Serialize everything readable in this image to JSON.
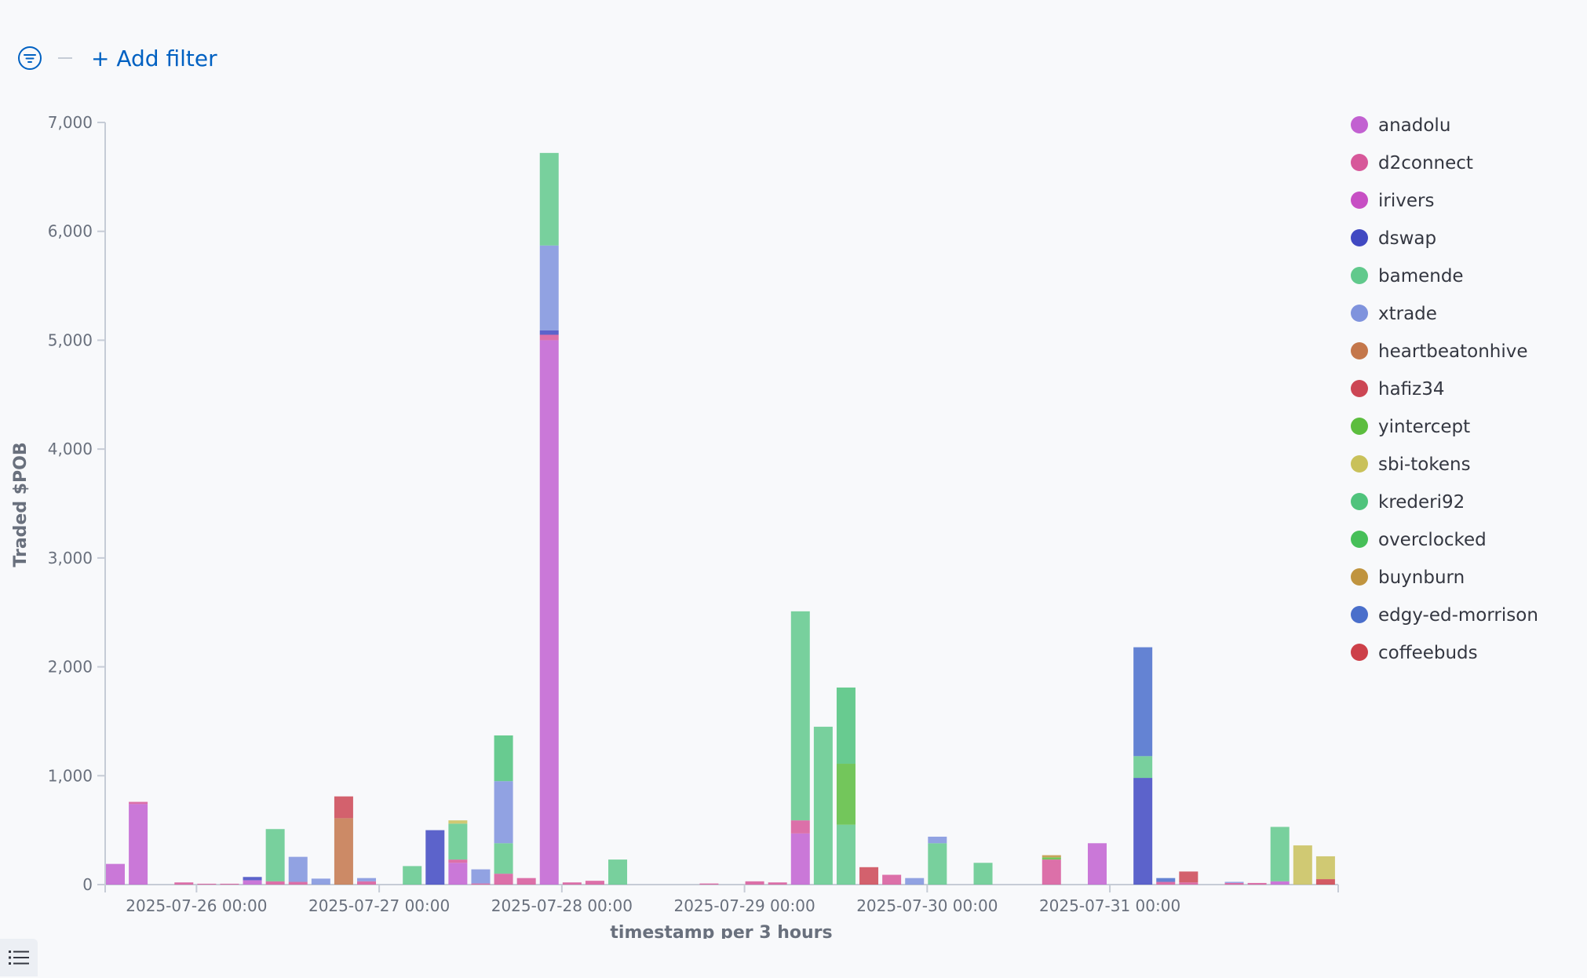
{
  "toolbar": {
    "add_filter_label": "+ Add filter",
    "filter_icon": "filter-icon",
    "legend_toggle_icon": "list-icon"
  },
  "chart_data": {
    "type": "bar",
    "stacked": true,
    "xlabel": "timestamp per 3 hours",
    "ylabel": "Traded $POB",
    "ylim": [
      0,
      7000
    ],
    "yticks": [
      0,
      1000,
      2000,
      3000,
      4000,
      5000,
      6000,
      7000
    ],
    "ytick_labels": [
      "0",
      "1,000",
      "2,000",
      "3,000",
      "4,000",
      "5,000",
      "6,000",
      "7,000"
    ],
    "xlim": [
      "2025-07-25 12:00",
      "2025-08-01 06:00"
    ],
    "xticks": [
      "2025-07-26 00:00",
      "2025-07-27 00:00",
      "2025-07-28 00:00",
      "2025-07-29 00:00",
      "2025-07-30 00:00",
      "2025-07-31 00:00"
    ],
    "grid": false,
    "legend_position": "right",
    "series": [
      {
        "name": "anadolu",
        "color": "#c261d1"
      },
      {
        "name": "d2connect",
        "color": "#d7589a"
      },
      {
        "name": "irivers",
        "color": "#c74fc4"
      },
      {
        "name": "dswap",
        "color": "#4149c2"
      },
      {
        "name": "bamende",
        "color": "#61c98c"
      },
      {
        "name": "xtrade",
        "color": "#7f93dd"
      },
      {
        "name": "heartbeatonhive",
        "color": "#c4774b"
      },
      {
        "name": "hafiz34",
        "color": "#cc4654"
      },
      {
        "name": "yintercept",
        "color": "#5cbd3e"
      },
      {
        "name": "sbi-tokens",
        "color": "#c9c15a"
      },
      {
        "name": "krederi92",
        "color": "#4fc37c"
      },
      {
        "name": "overclocked",
        "color": "#46bf58"
      },
      {
        "name": "buynburn",
        "color": "#c0943f"
      },
      {
        "name": "edgy-ed-morrison",
        "color": "#4a6fcb"
      },
      {
        "name": "coffeebuds",
        "color": "#cd4049"
      }
    ],
    "bars": [
      {
        "t": "2025-07-25 12:00",
        "stack": [
          {
            "s": "anadolu",
            "v": 190
          }
        ]
      },
      {
        "t": "2025-07-25 15:00",
        "stack": [
          {
            "s": "anadolu",
            "v": 740
          },
          {
            "s": "d2connect",
            "v": 20
          }
        ]
      },
      {
        "t": "2025-07-25 21:00",
        "stack": [
          {
            "s": "d2connect",
            "v": 20
          }
        ]
      },
      {
        "t": "2025-07-26 00:00",
        "stack": [
          {
            "s": "d2connect",
            "v": 8
          }
        ]
      },
      {
        "t": "2025-07-26 03:00",
        "stack": [
          {
            "s": "d2connect",
            "v": 8
          }
        ]
      },
      {
        "t": "2025-07-26 06:00",
        "stack": [
          {
            "s": "anadolu",
            "v": 40
          },
          {
            "s": "dswap",
            "v": 30
          }
        ]
      },
      {
        "t": "2025-07-26 09:00",
        "stack": [
          {
            "s": "d2connect",
            "v": 30
          },
          {
            "s": "bamende",
            "v": 480
          }
        ]
      },
      {
        "t": "2025-07-26 12:00",
        "stack": [
          {
            "s": "d2connect",
            "v": 25
          },
          {
            "s": "xtrade",
            "v": 230
          }
        ]
      },
      {
        "t": "2025-07-26 15:00",
        "stack": [
          {
            "s": "xtrade",
            "v": 55
          }
        ]
      },
      {
        "t": "2025-07-26 18:00",
        "stack": [
          {
            "s": "heartbeatonhive",
            "v": 610
          },
          {
            "s": "hafiz34",
            "v": 200
          }
        ]
      },
      {
        "t": "2025-07-26 21:00",
        "stack": [
          {
            "s": "d2connect",
            "v": 30
          },
          {
            "s": "xtrade",
            "v": 30
          }
        ]
      },
      {
        "t": "2025-07-27 03:00",
        "stack": [
          {
            "s": "bamende",
            "v": 170
          }
        ]
      },
      {
        "t": "2025-07-27 06:00",
        "stack": [
          {
            "s": "dswap",
            "v": 500
          }
        ]
      },
      {
        "t": "2025-07-27 09:00",
        "stack": [
          {
            "s": "anadolu",
            "v": 200
          },
          {
            "s": "d2connect",
            "v": 30
          },
          {
            "s": "bamende",
            "v": 330
          },
          {
            "s": "sbi-tokens",
            "v": 30
          }
        ]
      },
      {
        "t": "2025-07-27 12:00",
        "stack": [
          {
            "s": "d2connect",
            "v": 10
          },
          {
            "s": "xtrade",
            "v": 130
          }
        ]
      },
      {
        "t": "2025-07-27 15:00",
        "stack": [
          {
            "s": "d2connect",
            "v": 100
          },
          {
            "s": "bamende",
            "v": 280
          },
          {
            "s": "xtrade",
            "v": 570
          },
          {
            "s": "krederi92",
            "v": 420
          }
        ]
      },
      {
        "t": "2025-07-27 18:00",
        "stack": [
          {
            "s": "d2connect",
            "v": 60
          }
        ]
      },
      {
        "t": "2025-07-27 21:00",
        "stack": [
          {
            "s": "anadolu",
            "v": 5000
          },
          {
            "s": "d2connect",
            "v": 50
          },
          {
            "s": "dswap",
            "v": 40
          },
          {
            "s": "xtrade",
            "v": 780
          },
          {
            "s": "bamende",
            "v": 850
          }
        ]
      },
      {
        "t": "2025-07-28 00:00",
        "stack": [
          {
            "s": "d2connect",
            "v": 20
          }
        ]
      },
      {
        "t": "2025-07-28 03:00",
        "stack": [
          {
            "s": "d2connect",
            "v": 35
          }
        ]
      },
      {
        "t": "2025-07-28 06:00",
        "stack": [
          {
            "s": "bamende",
            "v": 230
          }
        ]
      },
      {
        "t": "2025-07-28 18:00",
        "stack": [
          {
            "s": "d2connect",
            "v": 10
          }
        ]
      },
      {
        "t": "2025-07-29 00:00",
        "stack": [
          {
            "s": "d2connect",
            "v": 30
          }
        ]
      },
      {
        "t": "2025-07-29 03:00",
        "stack": [
          {
            "s": "d2connect",
            "v": 20
          }
        ]
      },
      {
        "t": "2025-07-29 06:00",
        "stack": [
          {
            "s": "anadolu",
            "v": 470
          },
          {
            "s": "d2connect",
            "v": 120
          },
          {
            "s": "bamende",
            "v": 1920
          }
        ]
      },
      {
        "t": "2025-07-29 09:00",
        "stack": [
          {
            "s": "bamende",
            "v": 1450
          }
        ]
      },
      {
        "t": "2025-07-29 12:00",
        "stack": [
          {
            "s": "bamende",
            "v": 550
          },
          {
            "s": "yintercept",
            "v": 560
          },
          {
            "s": "krederi92",
            "v": 700
          }
        ]
      },
      {
        "t": "2025-07-29 15:00",
        "stack": [
          {
            "s": "hafiz34",
            "v": 160
          }
        ]
      },
      {
        "t": "2025-07-29 18:00",
        "stack": [
          {
            "s": "d2connect",
            "v": 90
          }
        ]
      },
      {
        "t": "2025-07-29 21:00",
        "stack": [
          {
            "s": "xtrade",
            "v": 60
          }
        ]
      },
      {
        "t": "2025-07-30 00:00",
        "stack": [
          {
            "s": "bamende",
            "v": 380
          },
          {
            "s": "xtrade",
            "v": 60
          }
        ]
      },
      {
        "t": "2025-07-30 06:00",
        "stack": [
          {
            "s": "bamende",
            "v": 200
          }
        ]
      },
      {
        "t": "2025-07-30 15:00",
        "stack": [
          {
            "s": "d2connect",
            "v": 230
          },
          {
            "s": "yintercept",
            "v": 20
          },
          {
            "s": "buynburn",
            "v": 20
          }
        ]
      },
      {
        "t": "2025-07-30 21:00",
        "stack": [
          {
            "s": "anadolu",
            "v": 380
          }
        ]
      },
      {
        "t": "2025-07-31 03:00",
        "stack": [
          {
            "s": "dswap",
            "v": 980
          },
          {
            "s": "bamende",
            "v": 200
          },
          {
            "s": "edgy-ed-morrison",
            "v": 1000
          }
        ]
      },
      {
        "t": "2025-07-31 06:00",
        "stack": [
          {
            "s": "d2connect",
            "v": 25
          },
          {
            "s": "edgy-ed-morrison",
            "v": 35
          }
        ]
      },
      {
        "t": "2025-07-31 09:00",
        "stack": [
          {
            "s": "d2connect",
            "v": 20
          },
          {
            "s": "hafiz34",
            "v": 100
          }
        ]
      },
      {
        "t": "2025-07-31 15:00",
        "stack": [
          {
            "s": "d2connect",
            "v": 15
          },
          {
            "s": "xtrade",
            "v": 10
          }
        ]
      },
      {
        "t": "2025-07-31 18:00",
        "stack": [
          {
            "s": "d2connect",
            "v": 15
          }
        ]
      },
      {
        "t": "2025-07-31 21:00",
        "stack": [
          {
            "s": "anadolu",
            "v": 30
          },
          {
            "s": "bamende",
            "v": 500
          }
        ]
      },
      {
        "t": "2025-08-01 00:00",
        "stack": [
          {
            "s": "sbi-tokens",
            "v": 360
          }
        ]
      },
      {
        "t": "2025-08-01 03:00",
        "stack": [
          {
            "s": "coffeebuds",
            "v": 50
          },
          {
            "s": "sbi-tokens",
            "v": 210
          }
        ]
      }
    ]
  }
}
